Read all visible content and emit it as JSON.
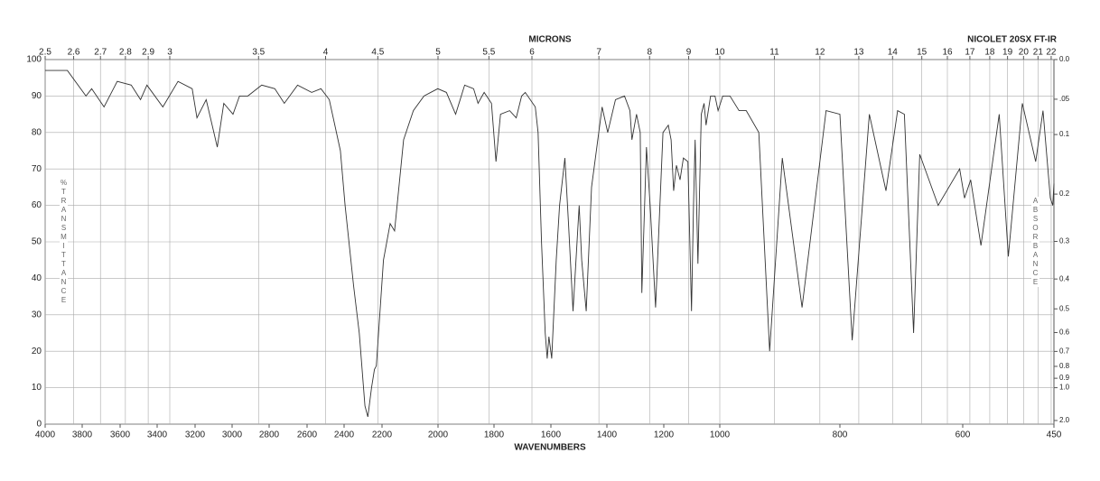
{
  "chart_data": {
    "type": "line",
    "title": "NICOLET 20SX FT-IR",
    "x2label": "MICRONS",
    "xlabel": "WAVENUMBERS",
    "ylabel": "%TRANSMITTANCE",
    "y2label": "ABSORBANCE",
    "xlim": [
      4000,
      450
    ],
    "xticks": [
      4000,
      3800,
      3600,
      3400,
      3200,
      3000,
      2800,
      2600,
      2400,
      2200,
      2000,
      1800,
      1600,
      1400,
      1200,
      1000,
      800,
      600,
      450
    ],
    "x2ticks": [
      2.5,
      2.6,
      2.7,
      2.8,
      2.9,
      3,
      3.5,
      4,
      4.5,
      5,
      5.5,
      6,
      7,
      8,
      9,
      10,
      11,
      12,
      13,
      14,
      15,
      16,
      17,
      18,
      19,
      20,
      21,
      22
    ],
    "ylim": [
      0,
      100
    ],
    "yticks": [
      0,
      10,
      20,
      30,
      40,
      50,
      60,
      70,
      80,
      90,
      100
    ],
    "y2ticks": [
      {
        "value": 0,
        "label": "0.0"
      },
      {
        "value": 0.05,
        "label": ".05"
      },
      0.1,
      0.2,
      0.3,
      0.4,
      0.5,
      0.6,
      0.7,
      0.8,
      0.9,
      {
        "value": 1,
        "label": "1.0"
      },
      {
        "value": 2,
        "label": "2.0"
      }
    ],
    "grid": true,
    "series": [
      {
        "color": "#333333",
        "x": [
          4000,
          3880,
          3780,
          3750,
          3685,
          3615,
          3540,
          3490,
          3455,
          3370,
          3290,
          3215,
          3190,
          3140,
          3080,
          3045,
          2995,
          2960,
          2915,
          2840,
          2770,
          2720,
          2650,
          2575,
          2525,
          2480,
          2420,
          2395,
          2350,
          2320,
          2290,
          2275,
          2255,
          2240,
          2230,
          2195,
          2171,
          2155,
          2123,
          2088,
          2050,
          2001,
          1970,
          1937,
          1905,
          1873,
          1857,
          1835,
          1809,
          1793,
          1777,
          1745,
          1722,
          1703,
          1690,
          1655,
          1645,
          1633,
          1620,
          1613,
          1607,
          1597,
          1581,
          1569,
          1550,
          1537,
          1521,
          1499,
          1490,
          1474,
          1455,
          1429,
          1417,
          1397,
          1370,
          1338,
          1319,
          1312,
          1296,
          1283,
          1277,
          1261,
          1248,
          1229,
          1203,
          1184,
          1174,
          1165,
          1155,
          1142,
          1130,
          1114,
          1101,
          1094,
          1088,
          1078,
          1066,
          1056,
          1049,
          1033,
          1017,
          1006,
          995,
          983,
          968,
          956,
          935,
          917,
          896,
          863,
          823,
          800,
          780,
          752,
          725,
          706,
          695,
          680,
          670,
          640,
          605,
          597,
          587,
          570,
          540,
          525,
          502,
          480,
          468,
          456,
          452,
          450
        ],
        "values": [
          97,
          97,
          90,
          92,
          87,
          94,
          93,
          89,
          93,
          87,
          94,
          92,
          84,
          89,
          76,
          88,
          85,
          90,
          90,
          93,
          92,
          88,
          93,
          91,
          92,
          89,
          75,
          60,
          38,
          25,
          5,
          2,
          10,
          15,
          16,
          45,
          55,
          53,
          78,
          86,
          90,
          92,
          91,
          85,
          93,
          92,
          88,
          91,
          88,
          72,
          85,
          86,
          84,
          90,
          91,
          87,
          80,
          50,
          25,
          18,
          24,
          18,
          45,
          60,
          73,
          55,
          31,
          60,
          45,
          31,
          65,
          80,
          87,
          80,
          89,
          90,
          86,
          78,
          85,
          80,
          36,
          76,
          60,
          32,
          80,
          82,
          78,
          64,
          71,
          67,
          73,
          72,
          31,
          60,
          78,
          44,
          85,
          88,
          82,
          90,
          90,
          86,
          90,
          90,
          86,
          86,
          80,
          20,
          73,
          32,
          86,
          85,
          23,
          85,
          64,
          86,
          85,
          25,
          74,
          60,
          70,
          62,
          67,
          49,
          85,
          46,
          88,
          72,
          86,
          62,
          60,
          66
        ]
      }
    ]
  }
}
